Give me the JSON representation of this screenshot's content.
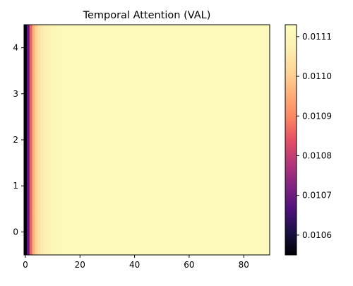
{
  "chart_data": {
    "type": "heatmap",
    "title": "Temporal Attention (VAL)",
    "xlabel": "",
    "ylabel": "",
    "x_ticks": [
      "0",
      "20",
      "40",
      "60",
      "80"
    ],
    "x_tick_values": [
      0,
      20,
      40,
      60,
      80
    ],
    "y_ticks": [
      "0",
      "1",
      "2",
      "3",
      "4"
    ],
    "y_tick_values": [
      0,
      1,
      2,
      3,
      4
    ],
    "xlim": [
      -0.5,
      89.5
    ],
    "ylim": [
      -0.5,
      4.5
    ],
    "colormap": "magma",
    "vmin": 0.01055,
    "vmax": 0.01113,
    "colorbar_ticks": [
      "0.0106",
      "0.0107",
      "0.0108",
      "0.0109",
      "0.0110",
      "0.0111"
    ],
    "colorbar_tick_values": [
      0.0106,
      0.0107,
      0.0108,
      0.0109,
      0.011,
      0.0111
    ],
    "rows": 5,
    "cols": 90,
    "column_profile": [
      0.01055,
      0.01068,
      0.01086,
      0.01096,
      0.01101,
      0.01104,
      0.01106,
      0.01107,
      0.01108,
      0.01109,
      0.0111,
      0.0111,
      0.01111,
      0.01111
    ],
    "plateau_value": 0.01111
  }
}
